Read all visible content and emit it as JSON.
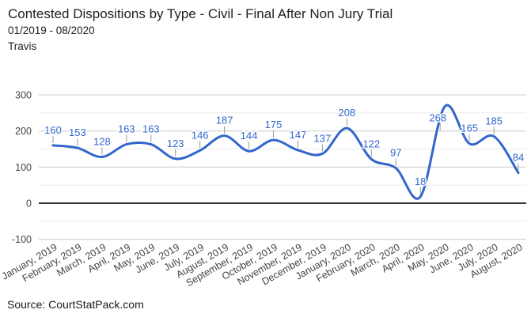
{
  "chart_data": {
    "type": "line",
    "smoothing": "spline",
    "title": "Contested Dispositions by Type - Civil - Final After Non Jury Trial",
    "subtitle": "01/2019 - 08/2020",
    "region": "Travis",
    "source": "Source: CourtStatPack.com",
    "legend": "none",
    "grid": true,
    "categories": [
      "January, 2019",
      "February, 2019",
      "March, 2019",
      "April, 2019",
      "May, 2019",
      "June, 2019",
      "July, 2019",
      "August, 2019",
      "September, 2019",
      "October, 2019",
      "November, 2019",
      "December, 2019",
      "January, 2020",
      "February, 2020",
      "March, 2020",
      "April, 2020",
      "May, 2020",
      "June, 2020",
      "July, 2020",
      "August, 2020"
    ],
    "values": [
      160,
      153,
      128,
      163,
      163,
      123,
      146,
      187,
      144,
      175,
      147,
      137,
      208,
      122,
      97,
      18,
      268,
      165,
      185,
      84
    ],
    "ylim": [
      -100,
      300
    ],
    "y_ticks": [
      300,
      200,
      100,
      0,
      -100
    ],
    "minor_y_ticks": [
      250,
      150,
      50,
      -50
    ],
    "series_color": "#3366cc",
    "label_color": "#3366cc",
    "grid_color": "#cccccc",
    "minor_grid_color": "#ebebeb",
    "baseline_color": "#333333",
    "stem_color": "#999999",
    "axis_label_color": "#444444"
  }
}
